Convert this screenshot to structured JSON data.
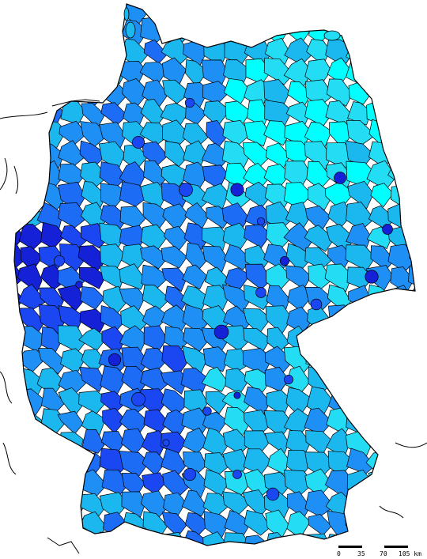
{
  "map": {
    "palette": {
      "lightest": "#00FFFF",
      "light": "#22DDF4",
      "mid_light": "#1BB8F0",
      "mid": "#1E90F5",
      "mid_dark": "#1C6CF5",
      "dark": "#1B47F2",
      "darkest": "#1421D6",
      "border": "#000000",
      "background": "#FFFFFF"
    }
  },
  "scale": {
    "tick_0": "0",
    "tick_1": "35",
    "tick_2": "70",
    "tick_3": "105 km"
  }
}
